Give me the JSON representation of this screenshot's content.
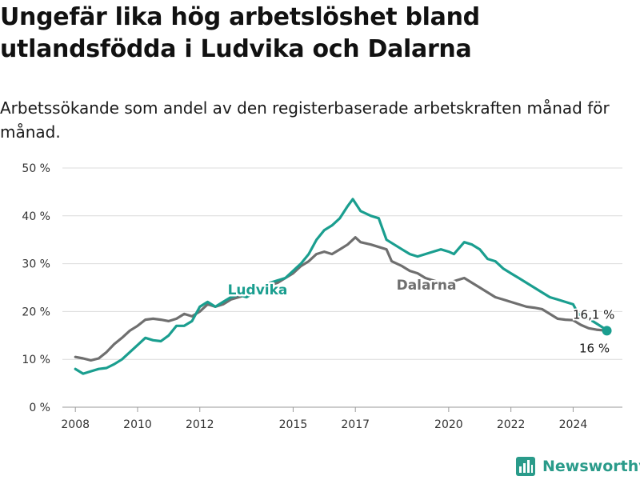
{
  "title": "Ungefär lika hög arbetslöshet bland utlandsfödda i Ludvika och Dalarna",
  "subtitle": "Arbetssökande som andel av den registerbaserade arbetskraften månad för månad.",
  "brand": {
    "name": "Newsworthy",
    "icon": "bar-chart-logo-icon"
  },
  "chart_data": {
    "type": "line",
    "title": "Ungefär lika hög arbetslöshet bland utlandsfödda i Ludvika och Dalarna",
    "subtitle": "Arbetssökande som andel av den registerbaserade arbetskraften månad för månad.",
    "xlabel": "",
    "ylabel": "",
    "xlim": [
      "2007-08",
      "2025-08"
    ],
    "ylim": [
      0,
      50
    ],
    "y_ticks": [
      0,
      10,
      20,
      30,
      40,
      50
    ],
    "y_tick_labels": [
      "0 %",
      "10 %",
      "20 %",
      "30 %",
      "40 %",
      "50 %"
    ],
    "x_ticks": [
      "2008-01",
      "2010-01",
      "2012-01",
      "2015-01",
      "2017-01",
      "2020-01",
      "2022-01",
      "2024-01"
    ],
    "x_tick_labels": [
      "2008",
      "2010",
      "2012",
      "2015",
      "2017",
      "2020",
      "2022",
      "2024"
    ],
    "grid": true,
    "legend": "direct labels on lines",
    "series": [
      {
        "name": "Dalarna",
        "color": "#6f6f6f",
        "points": [
          [
            "2008-01",
            10.5
          ],
          [
            "2008-04",
            10.2
          ],
          [
            "2008-07",
            9.8
          ],
          [
            "2008-10",
            10.2
          ],
          [
            "2009-01",
            11.5
          ],
          [
            "2009-04",
            13.2
          ],
          [
            "2009-07",
            14.5
          ],
          [
            "2009-10",
            16.0
          ],
          [
            "2010-01",
            17.0
          ],
          [
            "2010-04",
            18.3
          ],
          [
            "2010-07",
            18.5
          ],
          [
            "2010-10",
            18.3
          ],
          [
            "2011-01",
            18.0
          ],
          [
            "2011-04",
            18.5
          ],
          [
            "2011-07",
            19.5
          ],
          [
            "2011-10",
            19.0
          ],
          [
            "2012-01",
            20.0
          ],
          [
            "2012-04",
            21.5
          ],
          [
            "2012-07",
            21.0
          ],
          [
            "2012-10",
            21.5
          ],
          [
            "2013-01",
            22.5
          ],
          [
            "2013-04",
            23.0
          ],
          [
            "2013-07",
            23.5
          ],
          [
            "2013-10",
            24.0
          ],
          [
            "2014-01",
            25.0
          ],
          [
            "2014-04",
            25.5
          ],
          [
            "2014-07",
            26.0
          ],
          [
            "2014-10",
            27.0
          ],
          [
            "2015-01",
            28.0
          ],
          [
            "2015-04",
            29.5
          ],
          [
            "2015-07",
            30.5
          ],
          [
            "2015-10",
            32.0
          ],
          [
            "2016-01",
            32.5
          ],
          [
            "2016-04",
            32.0
          ],
          [
            "2016-07",
            33.0
          ],
          [
            "2016-10",
            34.0
          ],
          [
            "2017-01",
            35.5
          ],
          [
            "2017-03",
            34.5
          ],
          [
            "2017-07",
            34.0
          ],
          [
            "2017-10",
            33.5
          ],
          [
            "2018-01",
            33.0
          ],
          [
            "2018-03",
            30.5
          ],
          [
            "2018-07",
            29.5
          ],
          [
            "2018-10",
            28.5
          ],
          [
            "2019-01",
            28.0
          ],
          [
            "2019-04",
            27.0
          ],
          [
            "2019-07",
            26.5
          ],
          [
            "2019-10",
            26.0
          ],
          [
            "2020-01",
            26.0
          ],
          [
            "2020-04",
            26.5
          ],
          [
            "2020-07",
            27.0
          ],
          [
            "2020-10",
            26.0
          ],
          [
            "2021-01",
            25.0
          ],
          [
            "2021-04",
            24.0
          ],
          [
            "2021-07",
            23.0
          ],
          [
            "2021-10",
            22.5
          ],
          [
            "2022-01",
            22.0
          ],
          [
            "2022-04",
            21.5
          ],
          [
            "2022-07",
            21.0
          ],
          [
            "2022-10",
            20.8
          ],
          [
            "2023-01",
            20.5
          ],
          [
            "2023-04",
            19.5
          ],
          [
            "2023-07",
            18.5
          ],
          [
            "2023-10",
            18.3
          ],
          [
            "2024-01",
            18.2
          ],
          [
            "2024-04",
            17.2
          ],
          [
            "2024-07",
            16.5
          ],
          [
            "2024-10",
            16.2
          ],
          [
            "2025-02",
            16.0
          ]
        ],
        "end_label": "16 %"
      },
      {
        "name": "Ludvika",
        "color": "#1a9e8f",
        "points": [
          [
            "2008-01",
            8.0
          ],
          [
            "2008-04",
            7.0
          ],
          [
            "2008-07",
            7.5
          ],
          [
            "2008-10",
            8.0
          ],
          [
            "2009-01",
            8.2
          ],
          [
            "2009-04",
            9.0
          ],
          [
            "2009-07",
            10.0
          ],
          [
            "2009-10",
            11.5
          ],
          [
            "2010-01",
            13.0
          ],
          [
            "2010-04",
            14.5
          ],
          [
            "2010-07",
            14.0
          ],
          [
            "2010-10",
            13.8
          ],
          [
            "2011-01",
            15.0
          ],
          [
            "2011-04",
            17.0
          ],
          [
            "2011-07",
            17.0
          ],
          [
            "2011-10",
            18.0
          ],
          [
            "2012-01",
            21.0
          ],
          [
            "2012-04",
            22.0
          ],
          [
            "2012-07",
            21.0
          ],
          [
            "2012-10",
            22.0
          ],
          [
            "2013-01",
            23.0
          ],
          [
            "2013-04",
            23.5
          ],
          [
            "2013-07",
            23.0
          ],
          [
            "2013-10",
            24.0
          ],
          [
            "2014-01",
            25.0
          ],
          [
            "2014-04",
            26.0
          ],
          [
            "2014-07",
            26.5
          ],
          [
            "2014-10",
            27.0
          ],
          [
            "2015-01",
            28.5
          ],
          [
            "2015-04",
            30.0
          ],
          [
            "2015-07",
            32.0
          ],
          [
            "2015-10",
            35.0
          ],
          [
            "2016-01",
            37.0
          ],
          [
            "2016-04",
            38.0
          ],
          [
            "2016-07",
            39.5
          ],
          [
            "2016-10",
            42.0
          ],
          [
            "2016-12",
            43.5
          ],
          [
            "2017-03",
            41.0
          ],
          [
            "2017-07",
            40.0
          ],
          [
            "2017-10",
            39.5
          ],
          [
            "2018-01",
            35.0
          ],
          [
            "2018-04",
            34.0
          ],
          [
            "2018-07",
            33.0
          ],
          [
            "2018-10",
            32.0
          ],
          [
            "2019-01",
            31.5
          ],
          [
            "2019-04",
            32.0
          ],
          [
            "2019-07",
            32.5
          ],
          [
            "2019-10",
            33.0
          ],
          [
            "2020-01",
            32.5
          ],
          [
            "2020-03",
            32.0
          ],
          [
            "2020-07",
            34.5
          ],
          [
            "2020-10",
            34.0
          ],
          [
            "2021-01",
            33.0
          ],
          [
            "2021-04",
            31.0
          ],
          [
            "2021-07",
            30.5
          ],
          [
            "2021-10",
            29.0
          ],
          [
            "2022-01",
            28.0
          ],
          [
            "2022-04",
            27.0
          ],
          [
            "2022-07",
            26.0
          ],
          [
            "2022-10",
            25.0
          ],
          [
            "2023-01",
            24.0
          ],
          [
            "2023-04",
            23.0
          ],
          [
            "2023-07",
            22.5
          ],
          [
            "2023-10",
            22.0
          ],
          [
            "2024-01",
            21.5
          ],
          [
            "2024-03",
            19.5
          ],
          [
            "2024-07",
            18.5
          ],
          [
            "2024-10",
            17.5
          ],
          [
            "2025-02",
            16.1
          ]
        ],
        "end_label": "16,1 %"
      }
    ]
  }
}
